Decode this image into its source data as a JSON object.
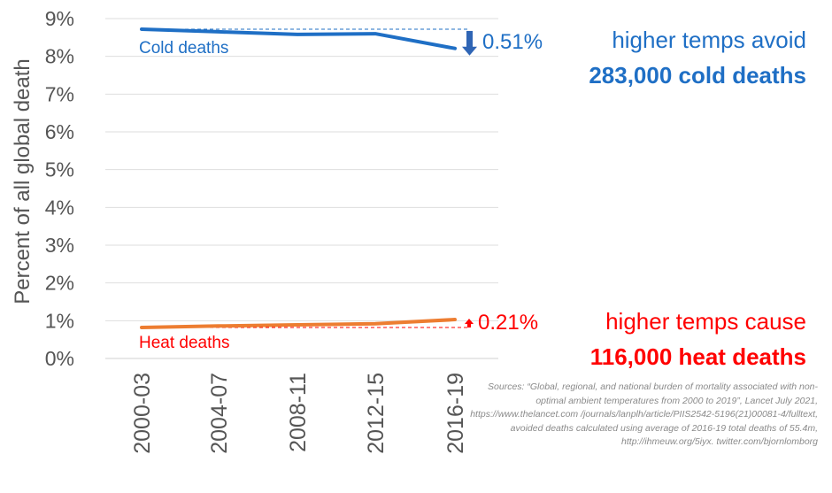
{
  "chart_data": {
    "type": "line",
    "categories": [
      "2000-03",
      "2004-07",
      "2008-11",
      "2012-15",
      "2016-19"
    ],
    "series": [
      {
        "name": "Cold deaths",
        "values": [
          8.72,
          8.65,
          8.58,
          8.6,
          8.21
        ],
        "color": "#1f6fc5"
      },
      {
        "name": "Heat deaths",
        "values": [
          0.82,
          0.86,
          0.89,
          0.92,
          1.03
        ],
        "color": "#ed7d31"
      }
    ],
    "ylim": [
      0,
      9
    ],
    "yticks": [
      "0%",
      "1%",
      "2%",
      "3%",
      "4%",
      "5%",
      "6%",
      "7%",
      "8%",
      "9%"
    ],
    "ylabel": "Percent of all global death",
    "grid": true,
    "annotations": {
      "cold": {
        "change": "0.51%",
        "line1": "higher temps avoid",
        "line2": "283,000 cold deaths",
        "color": "#1f6fc5"
      },
      "heat": {
        "change": "0.21%",
        "line1": "higher temps cause",
        "line2": "116,000 heat deaths",
        "color": "#ff0000"
      }
    },
    "series_label_colors": {
      "cold": "#1f6fc5",
      "heat": "#ff0000"
    }
  },
  "sources": "Sources: “Global, regional, and national burden of mortality associated with non-optimal ambient temperatures from 2000 to 2019”, Lancet July 2021, https://www.thelancet.com /journals/lanplh/article/PIIS2542-5196(21)00081-4/fulltext, avoided deaths calculated using average of 2016-19 total deaths of 55.4m, http://ihmeuw.org/5iyx. twitter.com/bjornlomborg"
}
